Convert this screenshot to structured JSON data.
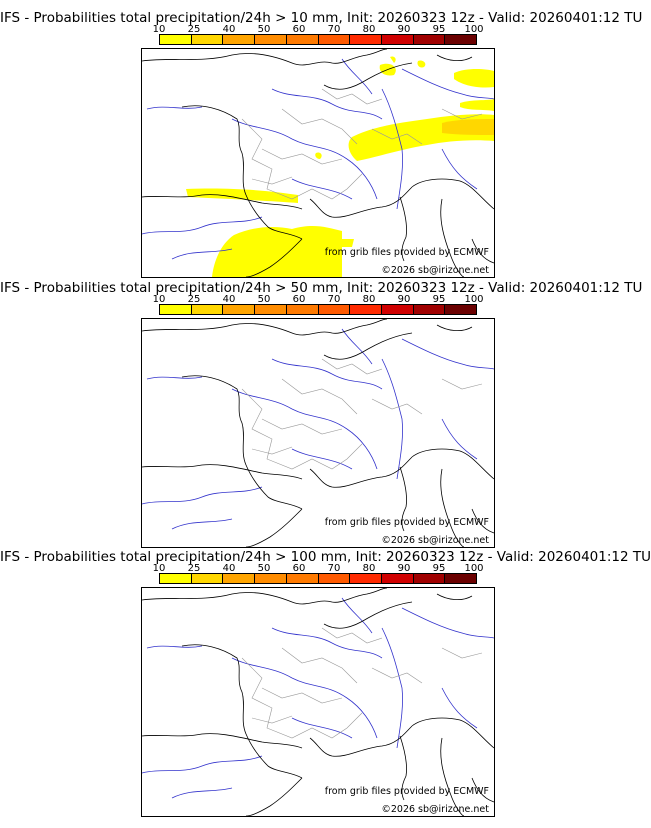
{
  "colorbar": {
    "labels": [
      "10",
      "25",
      "40",
      "50",
      "60",
      "70",
      "80",
      "90",
      "95",
      "100"
    ],
    "colors": [
      "#ffff00",
      "#ffd700",
      "#ffa500",
      "#ff8c00",
      "#ff7a00",
      "#ff5a00",
      "#ff2a00",
      "#d00000",
      "#a00000",
      "#6b0000"
    ]
  },
  "panels": [
    {
      "title": "IFS - Probabilities total precipitation/24h > 10 mm, Init: 20260323 12z - Valid: 20260401:12 TU",
      "credit_source": "from grib files provided by ECMWF",
      "credit_site": "©2026 sb@irizone.net",
      "probability_areas": true
    },
    {
      "title": "IFS - Probabilities total precipitation/24h > 50 mm, Init: 20260323 12z - Valid: 20260401:12 TU",
      "credit_source": "from grib files provided by ECMWF",
      "credit_site": "©2026 sb@irizone.net",
      "probability_areas": false
    },
    {
      "title": "IFS - Probabilities total precipitation/24h > 100 mm, Init: 20260323 12z - Valid: 20260401:12 TU",
      "credit_source": "from grib files provided by ECMWF",
      "credit_site": "©2026 sb@irizone.net",
      "probability_areas": false
    }
  ]
}
